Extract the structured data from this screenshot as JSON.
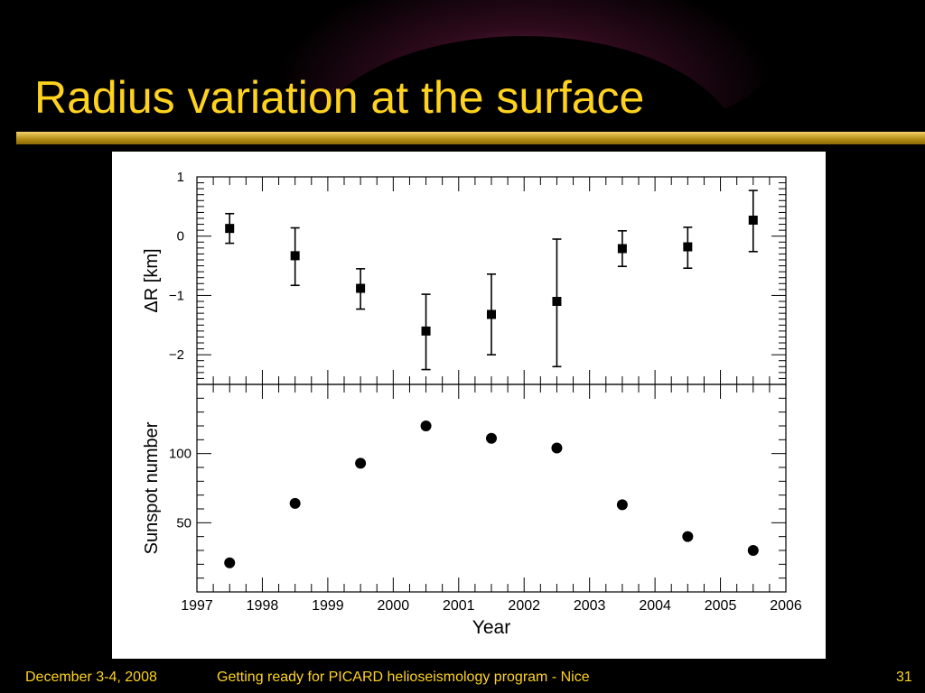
{
  "slide": {
    "title": "Radius variation at the surface",
    "footer_date": "December 3-4, 2008",
    "footer_event": "Getting ready for PICARD helioseismology program - Nice",
    "page_number": "31",
    "title_color": "#ffd21e"
  },
  "chart_data": [
    {
      "type": "scatter",
      "title": "",
      "xlabel": "",
      "ylabel": "ΔR [km]",
      "xlim": [
        1997,
        2006
      ],
      "ylim": [
        -2.5,
        1
      ],
      "yticks": [
        1,
        0,
        -1,
        -2
      ],
      "ytick_labels": [
        "1",
        "0",
        "−1",
        "−2"
      ],
      "marker": "square",
      "error_bars": true,
      "x": [
        1997.5,
        1998.5,
        1999.5,
        2000.5,
        2001.5,
        2002.5,
        2003.5,
        2004.5,
        2005.5
      ],
      "y": [
        0.13,
        -0.33,
        -0.88,
        -1.6,
        -1.32,
        -1.1,
        -0.21,
        -0.18,
        0.27
      ],
      "y_err_low": [
        0.25,
        0.5,
        0.35,
        0.65,
        0.68,
        1.1,
        0.3,
        0.36,
        0.53
      ],
      "y_err_high": [
        0.25,
        0.47,
        0.33,
        0.62,
        0.68,
        1.05,
        0.3,
        0.33,
        0.5
      ]
    },
    {
      "type": "scatter",
      "title": "",
      "xlabel": "Year",
      "ylabel": "Sunspot number",
      "xlim": [
        1997,
        2006
      ],
      "ylim": [
        0,
        150
      ],
      "yticks": [
        100,
        50
      ],
      "ytick_labels": [
        "100",
        "50"
      ],
      "xticks": [
        1997,
        1998,
        1999,
        2000,
        2001,
        2002,
        2003,
        2004,
        2005,
        2006
      ],
      "xtick_labels": [
        "1997",
        "1998",
        "1999",
        "2000",
        "2001",
        "2002",
        "2003",
        "2004",
        "2005",
        "2006"
      ],
      "marker": "circle",
      "x": [
        1997.5,
        1998.5,
        1999.5,
        2000.5,
        2001.5,
        2002.5,
        2003.5,
        2004.5,
        2005.5
      ],
      "y": [
        21,
        64,
        93,
        120,
        111,
        104,
        63,
        40,
        30
      ]
    }
  ]
}
